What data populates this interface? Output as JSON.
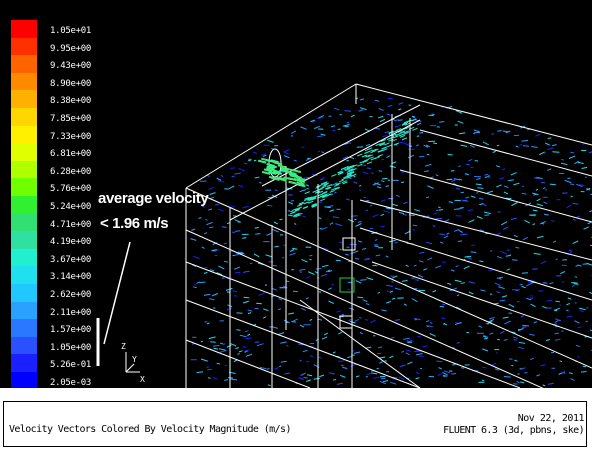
{
  "legend": {
    "colors": [
      "#ff0000",
      "#ff3000",
      "#ff6400",
      "#ff8a00",
      "#ffb000",
      "#ffd600",
      "#fff000",
      "#e0ff00",
      "#b0ff00",
      "#70ff00",
      "#30f030",
      "#30e070",
      "#30e0a0",
      "#20f0d0",
      "#20e0f0",
      "#20c8ff",
      "#2aa0ff",
      "#2a78ff",
      "#2a50ff",
      "#1a20ff",
      "#0000ff"
    ],
    "ticks": [
      "1.05e+01",
      "9.95e+00",
      "9.43e+00",
      "8.90e+00",
      "8.38e+00",
      "7.85e+00",
      "7.33e+00",
      "6.81e+00",
      "6.28e+00",
      "5.76e+00",
      "5.24e+00",
      "4.71e+00",
      "4.19e+00",
      "3.67e+00",
      "3.14e+00",
      "2.62e+00",
      "2.11e+00",
      "1.57e+00",
      "1.05e+00",
      "5.26e-01",
      "2.05e-03"
    ]
  },
  "annotation": {
    "line1": "average velocity",
    "line2": "< 1.96 m/s"
  },
  "axes": {
    "z": "Z",
    "y": "Y",
    "x": "X"
  },
  "footer": {
    "caption": "Velocity Vectors Colored By Velocity Magnitude (m/s)",
    "date": "Nov 22, 2011",
    "solver": "FLUENT 6.3 (3d, pbns, ske)"
  }
}
